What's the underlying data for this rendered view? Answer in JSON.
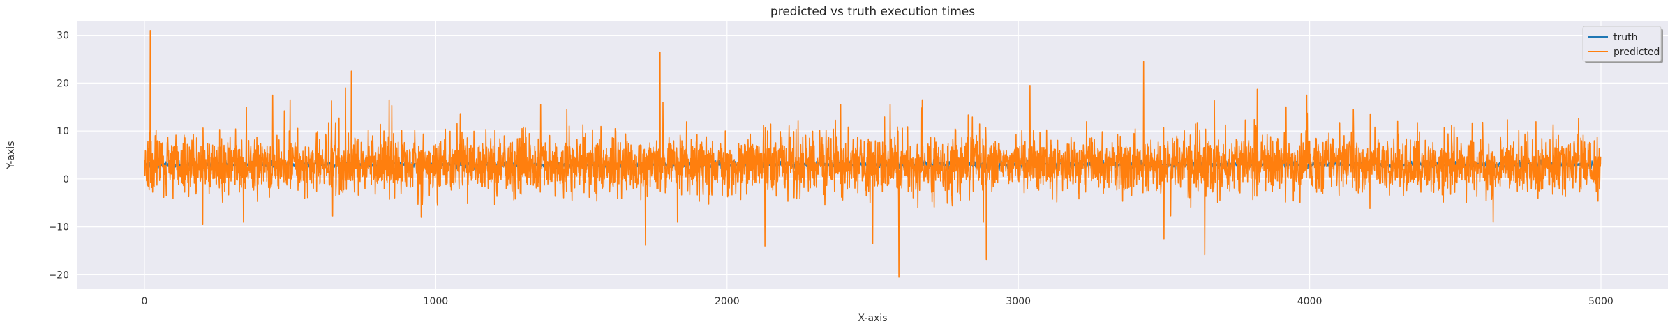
{
  "chart_data": {
    "type": "line",
    "title": "predicted vs truth execution times",
    "xlabel": "X-axis",
    "ylabel": "Y-axis",
    "xlim": [
      -230,
      5230
    ],
    "ylim": [
      -23,
      33
    ],
    "xticks": [
      0,
      1000,
      2000,
      3000,
      4000,
      5000
    ],
    "yticks": [
      -20,
      -10,
      0,
      10,
      20,
      30
    ],
    "grid": true,
    "legend_position": "top-right",
    "n_points": 5000,
    "series": [
      {
        "name": "truth",
        "color": "#1f77b4",
        "approx_level": 3,
        "approx_spread": 1,
        "description_points": [
          {
            "x": 0,
            "y": 3.2
          },
          {
            "x": 500,
            "y": 3.0
          },
          {
            "x": 1000,
            "y": 3.1
          },
          {
            "x": 1500,
            "y": 3.0
          },
          {
            "x": 2000,
            "y": 3.2
          },
          {
            "x": 2500,
            "y": 3.0
          },
          {
            "x": 3000,
            "y": 3.1
          },
          {
            "x": 3500,
            "y": 3.0
          },
          {
            "x": 4000,
            "y": 3.1
          },
          {
            "x": 4500,
            "y": 3.0
          },
          {
            "x": 5000,
            "y": 3.1
          }
        ]
      },
      {
        "name": "predicted",
        "color": "#ff7f0e",
        "approx_level": 3,
        "approx_spread": 4,
        "spikes": [
          {
            "x": 20,
            "y": 31
          },
          {
            "x": 200,
            "y": -9.5
          },
          {
            "x": 340,
            "y": -9
          },
          {
            "x": 350,
            "y": 15
          },
          {
            "x": 440,
            "y": 17.5
          },
          {
            "x": 500,
            "y": 16.5
          },
          {
            "x": 690,
            "y": 19
          },
          {
            "x": 710,
            "y": 22.5
          },
          {
            "x": 840,
            "y": 16.5
          },
          {
            "x": 950,
            "y": -8
          },
          {
            "x": 1360,
            "y": 15.5
          },
          {
            "x": 1450,
            "y": 14.5
          },
          {
            "x": 1720,
            "y": -13.8
          },
          {
            "x": 1770,
            "y": 26.5
          },
          {
            "x": 1780,
            "y": 16
          },
          {
            "x": 1830,
            "y": -9
          },
          {
            "x": 2130,
            "y": -14
          },
          {
            "x": 2390,
            "y": 15.5
          },
          {
            "x": 2500,
            "y": -13.5
          },
          {
            "x": 2560,
            "y": 15.5
          },
          {
            "x": 2590,
            "y": -20.5
          },
          {
            "x": 2670,
            "y": 16.5
          },
          {
            "x": 2880,
            "y": -9
          },
          {
            "x": 2890,
            "y": -16.8
          },
          {
            "x": 3040,
            "y": 19.5
          },
          {
            "x": 3430,
            "y": 24.5
          },
          {
            "x": 3500,
            "y": -12.5
          },
          {
            "x": 3640,
            "y": -15.8
          },
          {
            "x": 3820,
            "y": 18.7
          },
          {
            "x": 3990,
            "y": 17.5
          },
          {
            "x": 4150,
            "y": 14.5
          },
          {
            "x": 4630,
            "y": -9
          }
        ]
      }
    ]
  }
}
